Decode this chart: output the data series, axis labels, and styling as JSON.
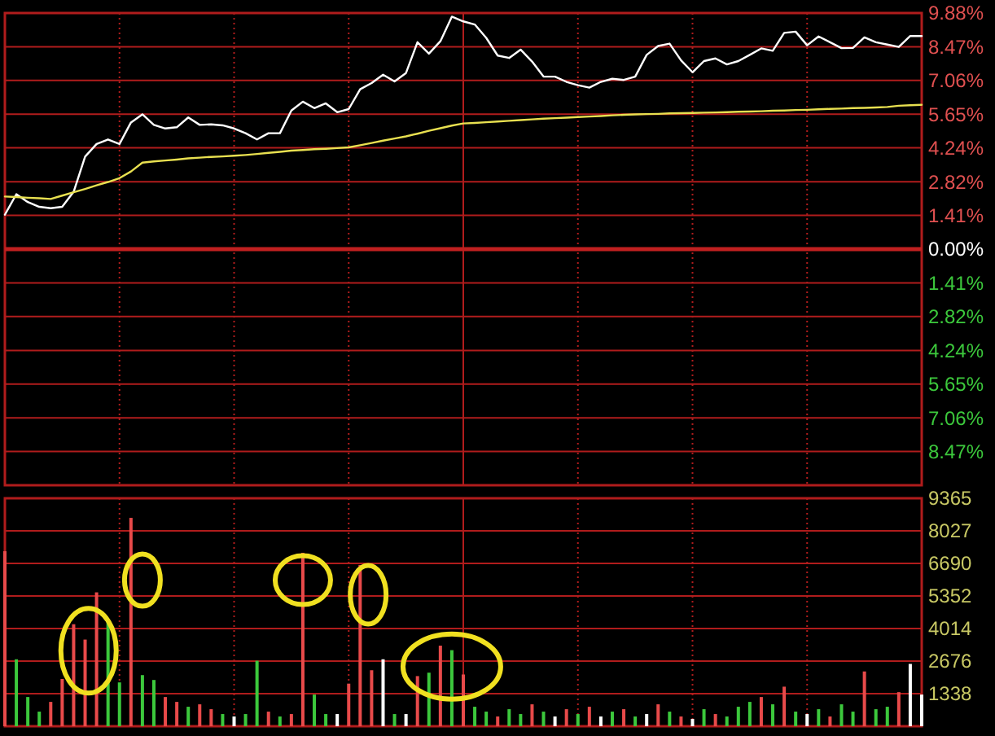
{
  "chart_data": [
    {
      "type": "line",
      "categories": [
        null,
        null,
        null,
        null,
        null,
        null,
        null,
        null,
        null,
        null,
        null,
        null,
        null,
        null,
        null,
        null,
        null,
        null,
        null,
        null,
        null,
        null,
        null,
        null,
        null,
        null,
        null,
        null,
        null,
        null,
        null,
        null,
        null,
        null,
        null,
        null,
        null,
        null,
        null,
        null,
        null,
        null,
        null,
        null,
        null,
        null,
        null,
        null,
        null,
        null,
        null,
        null,
        null,
        null,
        null,
        null,
        null,
        null,
        null,
        null,
        null,
        null,
        null,
        null,
        null,
        null,
        null,
        null,
        null,
        null,
        null,
        null,
        null,
        null,
        null,
        null,
        null,
        null,
        null,
        null,
        null
      ],
      "ylim": [
        -9.88,
        9.88
      ],
      "yticks": [
        {
          "value": 9.88,
          "label": "9.88%"
        },
        {
          "value": 8.47,
          "label": "8.47%"
        },
        {
          "value": 7.06,
          "label": "7.06%"
        },
        {
          "value": 5.65,
          "label": "5.65%"
        },
        {
          "value": 4.24,
          "label": "4.24%"
        },
        {
          "value": 2.82,
          "label": "2.82%"
        },
        {
          "value": 1.41,
          "label": "1.41%"
        },
        {
          "value": 0,
          "label": "0.00%"
        },
        {
          "value": -1.41,
          "label": "1.41%"
        },
        {
          "value": -2.82,
          "label": "2.82%"
        },
        {
          "value": -4.24,
          "label": "4.24%"
        },
        {
          "value": -5.65,
          "label": "5.65%"
        },
        {
          "value": -7.06,
          "label": "7.06%"
        },
        {
          "value": -8.47,
          "label": "8.47%"
        },
        {
          "value": -9.88,
          "label": null
        }
      ],
      "grid": true,
      "tick_labels": "y",
      "ref_lines": [
        {
          "axis": "y",
          "value": 0,
          "color": "#c02020"
        }
      ],
      "series": [
        {
          "color": "#ffffff",
          "values": [
            1.44,
            2.3,
            1.97,
            1.77,
            1.71,
            1.77,
            2.4,
            3.87,
            4.4,
            4.59,
            4.4,
            5.3,
            5.64,
            5.2,
            5.05,
            5.1,
            5.51,
            5.2,
            5.22,
            5.18,
            5.05,
            4.85,
            4.59,
            4.85,
            4.85,
            5.8,
            6.17,
            5.9,
            6.1,
            5.73,
            5.86,
            6.69,
            6.95,
            7.3,
            7.02,
            7.37,
            8.66,
            8.18,
            8.7,
            9.73,
            9.53,
            9.4,
            8.84,
            8.1,
            8.0,
            8.35,
            7.85,
            7.22,
            7.22,
            7.0,
            6.86,
            6.76,
            7.0,
            7.13,
            7.08,
            7.22,
            8.13,
            8.5,
            8.6,
            7.9,
            7.4,
            7.87,
            7.98,
            7.73,
            7.87,
            8.13,
            8.4,
            8.3,
            9.05,
            9.1,
            8.53,
            8.9,
            8.66,
            8.41,
            8.42,
            8.86,
            8.66,
            8.56,
            8.46,
            8.92,
            8.92
          ]
        },
        {
          "color": "#e8e050",
          "values": [
            2.2,
            2.18,
            2.15,
            2.13,
            2.1,
            2.24,
            2.38,
            2.52,
            2.67,
            2.81,
            2.97,
            3.25,
            3.62,
            3.67,
            3.71,
            3.75,
            3.8,
            3.83,
            3.86,
            3.88,
            3.91,
            3.94,
            3.98,
            4.03,
            4.07,
            4.12,
            4.15,
            4.18,
            4.2,
            4.23,
            4.26,
            4.35,
            4.44,
            4.54,
            4.63,
            4.72,
            4.83,
            4.95,
            5.06,
            5.17,
            5.26,
            5.28,
            5.31,
            5.34,
            5.37,
            5.4,
            5.43,
            5.46,
            5.48,
            5.5,
            5.53,
            5.55,
            5.57,
            5.6,
            5.62,
            5.64,
            5.65,
            5.66,
            5.68,
            5.69,
            5.7,
            5.71,
            5.72,
            5.73,
            5.75,
            5.76,
            5.77,
            5.79,
            5.8,
            5.82,
            5.83,
            5.85,
            5.87,
            5.88,
            5.9,
            5.91,
            5.93,
            5.95,
            6.0,
            6.02,
            6.04
          ]
        }
      ]
    },
    {
      "type": "bar",
      "categories": [
        null,
        null,
        null,
        null,
        null,
        null,
        null,
        null,
        null,
        null,
        null,
        null,
        null,
        null,
        null,
        null,
        null,
        null,
        null,
        null,
        null,
        null,
        null,
        null,
        null,
        null,
        null,
        null,
        null,
        null,
        null,
        null,
        null,
        null,
        null,
        null,
        null,
        null,
        null,
        null,
        null,
        null,
        null,
        null,
        null,
        null,
        null,
        null,
        null,
        null,
        null,
        null,
        null,
        null,
        null,
        null,
        null,
        null,
        null,
        null,
        null,
        null,
        null,
        null,
        null,
        null,
        null,
        null,
        null,
        null,
        null,
        null,
        null,
        null,
        null,
        null,
        null,
        null,
        null,
        null,
        null
      ],
      "ylim": [
        0,
        9365
      ],
      "yticks": [
        1338,
        2676,
        4014,
        5352,
        6690,
        8027,
        9365
      ],
      "grid": true,
      "tick_labels": "y",
      "values": [
        7190,
        2750,
        1200,
        600,
        1000,
        1940,
        4190,
        3560,
        5500,
        4300,
        1800,
        8560,
        2100,
        1900,
        1200,
        1000,
        800,
        900,
        700,
        500,
        400,
        500,
        2690,
        600,
        400,
        500,
        7125,
        1300,
        500,
        500,
        1750,
        6625,
        2300,
        2750,
        500,
        500,
        2060,
        2200,
        3310,
        3125,
        2125,
        800,
        600,
        400,
        700,
        500,
        900,
        600,
        400,
        700,
        500,
        800,
        400,
        600,
        700,
        400,
        500,
        900,
        600,
        400,
        300,
        700,
        500,
        400,
        800,
        1000,
        1200,
        900,
        1625,
        600,
        500,
        700,
        400,
        900,
        600,
        2250,
        700,
        800,
        1400,
        2560,
        1300
      ],
      "colors": [
        "#e84a4a",
        "#3cc83c",
        "#3cc83c",
        "#3cc83c",
        "#e84a4a",
        "#e84a4a",
        "#e84a4a",
        "#e84a4a",
        "#e84a4a",
        "#3cc83c",
        "#3cc83c",
        "#e84a4a",
        "#3cc83c",
        "#3cc83c",
        "#e84a4a",
        "#e84a4a",
        "#3cc83c",
        "#e84a4a",
        "#e84a4a",
        "#3cc83c",
        "#ffffff",
        "#3cc83c",
        "#3cc83c",
        "#e84a4a",
        "#3cc83c",
        "#e84a4a",
        "#e84a4a",
        "#3cc83c",
        "#3cc83c",
        "#ffffff",
        "#e84a4a",
        "#e84a4a",
        "#e84a4a",
        "#ffffff",
        "#3cc83c",
        "#ffffff",
        "#e84a4a",
        "#3cc83c",
        "#e84a4a",
        "#3cc83c",
        "#e84a4a",
        "#3cc83c",
        "#3cc83c",
        "#e84a4a",
        "#3cc83c",
        "#3cc83c",
        "#e84a4a",
        "#3cc83c",
        "#ffffff",
        "#e84a4a",
        "#3cc83c",
        "#e84a4a",
        "#ffffff",
        "#3cc83c",
        "#e84a4a",
        "#3cc83c",
        "#ffffff",
        "#e84a4a",
        "#3cc83c",
        "#e84a4a",
        "#ffffff",
        "#3cc83c",
        "#e84a4a",
        "#3cc83c",
        "#3cc83c",
        "#3cc83c",
        "#e84a4a",
        "#3cc83c",
        "#e84a4a",
        "#3cc83c",
        "#ffffff",
        "#3cc83c",
        "#e84a4a",
        "#3cc83c",
        "#3cc83c",
        "#e84a4a",
        "#3cc83c",
        "#3cc83c",
        "#e84a4a",
        "#ffffff",
        "#ffffff"
      ]
    }
  ]
}
